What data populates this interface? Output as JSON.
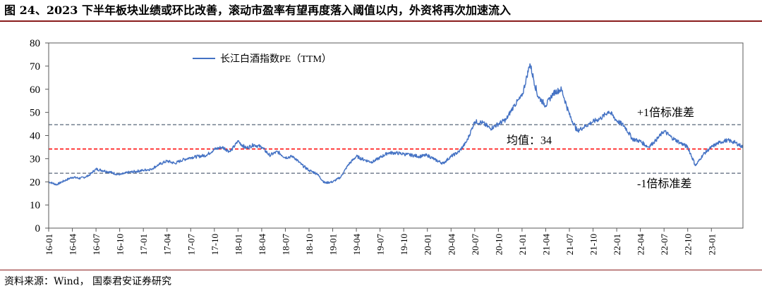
{
  "figure": {
    "title": "图 24、2023 下半年板块业绩或环比改善，滚动市盈率有望再度落入阈值以内，外资将再次加速流入",
    "source": "资料来源：Wind，  国泰君安证券研究"
  },
  "chart_data": {
    "type": "line",
    "series": [
      {
        "name": "长江白酒指数PE（TTM）",
        "color": "#4472C4",
        "points": [
          [
            "16-01",
            20
          ],
          [
            "16-02",
            18.8
          ],
          [
            "16-03",
            20.5
          ],
          [
            "16-04",
            22
          ],
          [
            "16-05",
            21.5
          ],
          [
            "16-06",
            22.5
          ],
          [
            "16-07",
            25.5
          ],
          [
            "16-08",
            24.8
          ],
          [
            "16-09",
            24
          ],
          [
            "16-10",
            23
          ],
          [
            "16-11",
            24
          ],
          [
            "16-12",
            24.5
          ],
          [
            "17-01",
            25
          ],
          [
            "17-02",
            25.5
          ],
          [
            "17-03",
            27.5
          ],
          [
            "17-04",
            29
          ],
          [
            "17-05",
            28
          ],
          [
            "17-06",
            29.5
          ],
          [
            "17-07",
            30.5
          ],
          [
            "17-08",
            31
          ],
          [
            "17-09",
            31.5
          ],
          [
            "17-10",
            34
          ],
          [
            "17-11",
            35
          ],
          [
            "17-12",
            33
          ],
          [
            "18-01",
            37.5
          ],
          [
            "18-02",
            34.5
          ],
          [
            "18-03",
            36
          ],
          [
            "18-04",
            35
          ],
          [
            "18-05",
            31.5
          ],
          [
            "18-06",
            33
          ],
          [
            "18-07",
            30.5
          ],
          [
            "18-08",
            31
          ],
          [
            "18-09",
            27.5
          ],
          [
            "18-10",
            25
          ],
          [
            "18-11",
            23.5
          ],
          [
            "18-12",
            19.5
          ],
          [
            "19-01",
            20
          ],
          [
            "19-02",
            22
          ],
          [
            "19-03",
            27.5
          ],
          [
            "19-04",
            31
          ],
          [
            "19-05",
            29.5
          ],
          [
            "19-06",
            28.5
          ],
          [
            "19-07",
            30.5
          ],
          [
            "19-08",
            32.5
          ],
          [
            "19-09",
            32.5
          ],
          [
            "19-10",
            32
          ],
          [
            "19-11",
            31.5
          ],
          [
            "19-12",
            31
          ],
          [
            "20-01",
            31.5
          ],
          [
            "20-02",
            29.5
          ],
          [
            "20-03",
            28
          ],
          [
            "20-04",
            31
          ],
          [
            "20-05",
            33
          ],
          [
            "20-06",
            37.5
          ],
          [
            "20-07",
            46
          ],
          [
            "20-08",
            45.5
          ],
          [
            "20-09",
            43
          ],
          [
            "20-10",
            45
          ],
          [
            "20-11",
            47
          ],
          [
            "20-12",
            53
          ],
          [
            "21-01",
            57
          ],
          [
            "21-02",
            71
          ],
          [
            "21-03",
            57
          ],
          [
            "21-04",
            53
          ],
          [
            "21-05",
            58.5
          ],
          [
            "21-06",
            60
          ],
          [
            "21-07",
            49
          ],
          [
            "21-08",
            42
          ],
          [
            "21-09",
            44
          ],
          [
            "21-10",
            46
          ],
          [
            "21-11",
            47.5
          ],
          [
            "21-12",
            50.5
          ],
          [
            "22-01",
            46.5
          ],
          [
            "22-02",
            44
          ],
          [
            "22-03",
            38.5
          ],
          [
            "22-04",
            37.5
          ],
          [
            "22-05",
            35
          ],
          [
            "22-06",
            38
          ],
          [
            "22-07",
            42
          ],
          [
            "22-08",
            39
          ],
          [
            "22-09",
            37
          ],
          [
            "22-10",
            35
          ],
          [
            "22-11",
            27
          ],
          [
            "22-12",
            32
          ],
          [
            "23-01",
            35
          ],
          [
            "23-02",
            37
          ],
          [
            "23-03",
            38
          ],
          [
            "23-04",
            37
          ],
          [
            "23-05",
            35
          ]
        ]
      }
    ],
    "reference_lines": [
      {
        "name": "+1倍标准差",
        "label": "+1倍标准差",
        "value": 44.7,
        "color": "#44546A",
        "style": "dashed"
      },
      {
        "name": "均值",
        "label": "均值：34",
        "value": 34.2,
        "color": "#FF0000",
        "style": "dashed"
      },
      {
        "name": "-1倍标准差",
        "label": "-1倍标准差",
        "value": 23.7,
        "color": "#44546A",
        "style": "dashed"
      }
    ],
    "x_tick_labels": [
      "16-01",
      "16-04",
      "16-07",
      "16-10",
      "17-01",
      "17-04",
      "17-07",
      "17-10",
      "18-01",
      "18-04",
      "18-07",
      "18-10",
      "19-01",
      "19-04",
      "19-07",
      "19-10",
      "20-01",
      "20-04",
      "20-07",
      "20-10",
      "21-01",
      "21-04",
      "21-07",
      "21-10",
      "22-01",
      "22-04",
      "22-07",
      "22-10",
      "23-01"
    ],
    "ylim": [
      0,
      80
    ],
    "y_ticks": [
      0,
      10,
      20,
      30,
      40,
      50,
      60,
      70,
      80
    ],
    "xlabel": "",
    "ylabel": "",
    "grid": false,
    "legend": [
      "长江白酒指数PE（TTM）"
    ],
    "legend_position": "top-left"
  }
}
